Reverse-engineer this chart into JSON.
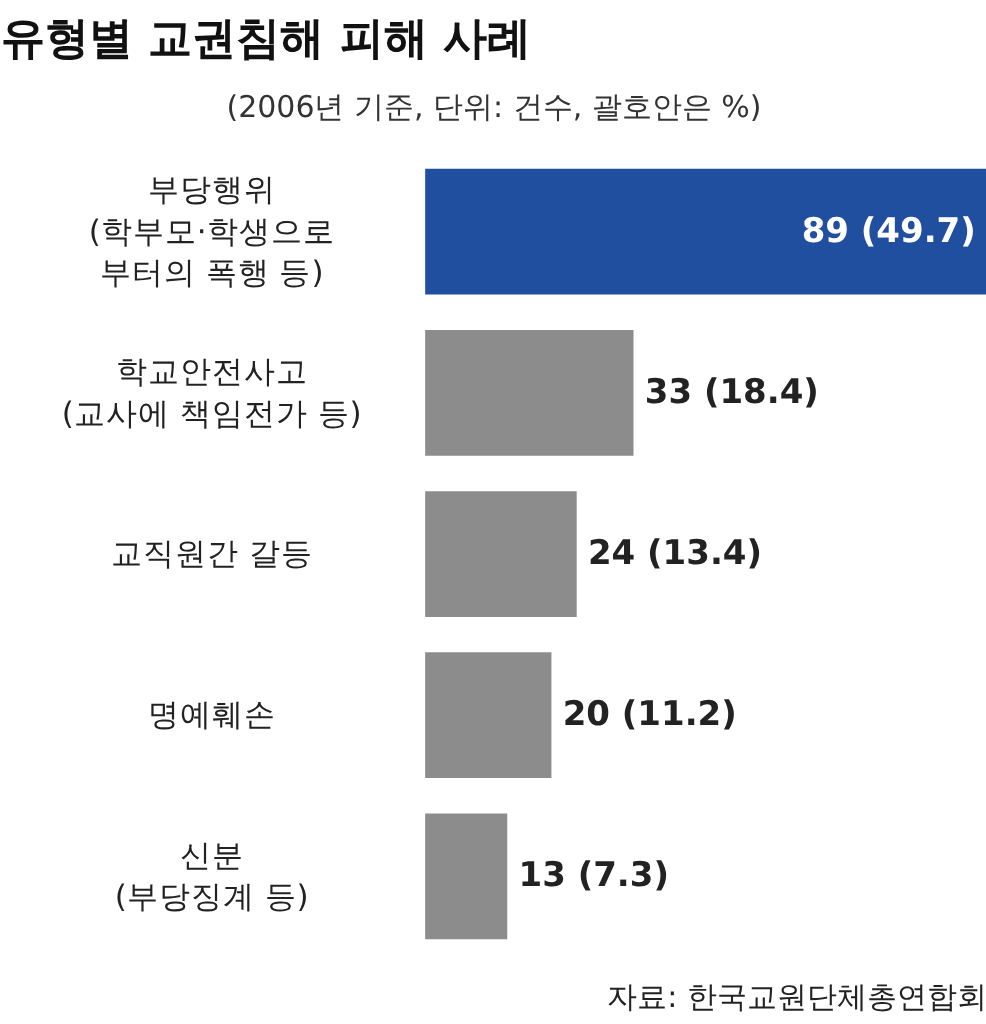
{
  "chart_data": {
    "type": "bar",
    "orientation": "horizontal",
    "title": "유형별 교권침해 피해 사례",
    "subtitle": "(2006년 기준, 단위: 건수, 괄호안은 %)",
    "categories": [
      "부당행위\n(학부모·학생으로\n부터의 폭행 등)",
      "학교안전사고\n(교사에 책임전가 등)",
      "교직원간 갈등",
      "명예훼손",
      "신분\n(부당징계 등)"
    ],
    "values": [
      89,
      33,
      24,
      20,
      13
    ],
    "colors": [
      "#1f4f9e",
      "#8c8c8c",
      "#8c8c8c",
      "#8c8c8c",
      "#8c8c8c"
    ],
    "value_labels": [
      "89 (49.7)",
      "33 (18.4)",
      "24 (13.4)",
      "20 (11.2)",
      "13 (7.3)"
    ],
    "annotations": [
      "자료: 한국교원단체총연합회"
    ]
  }
}
